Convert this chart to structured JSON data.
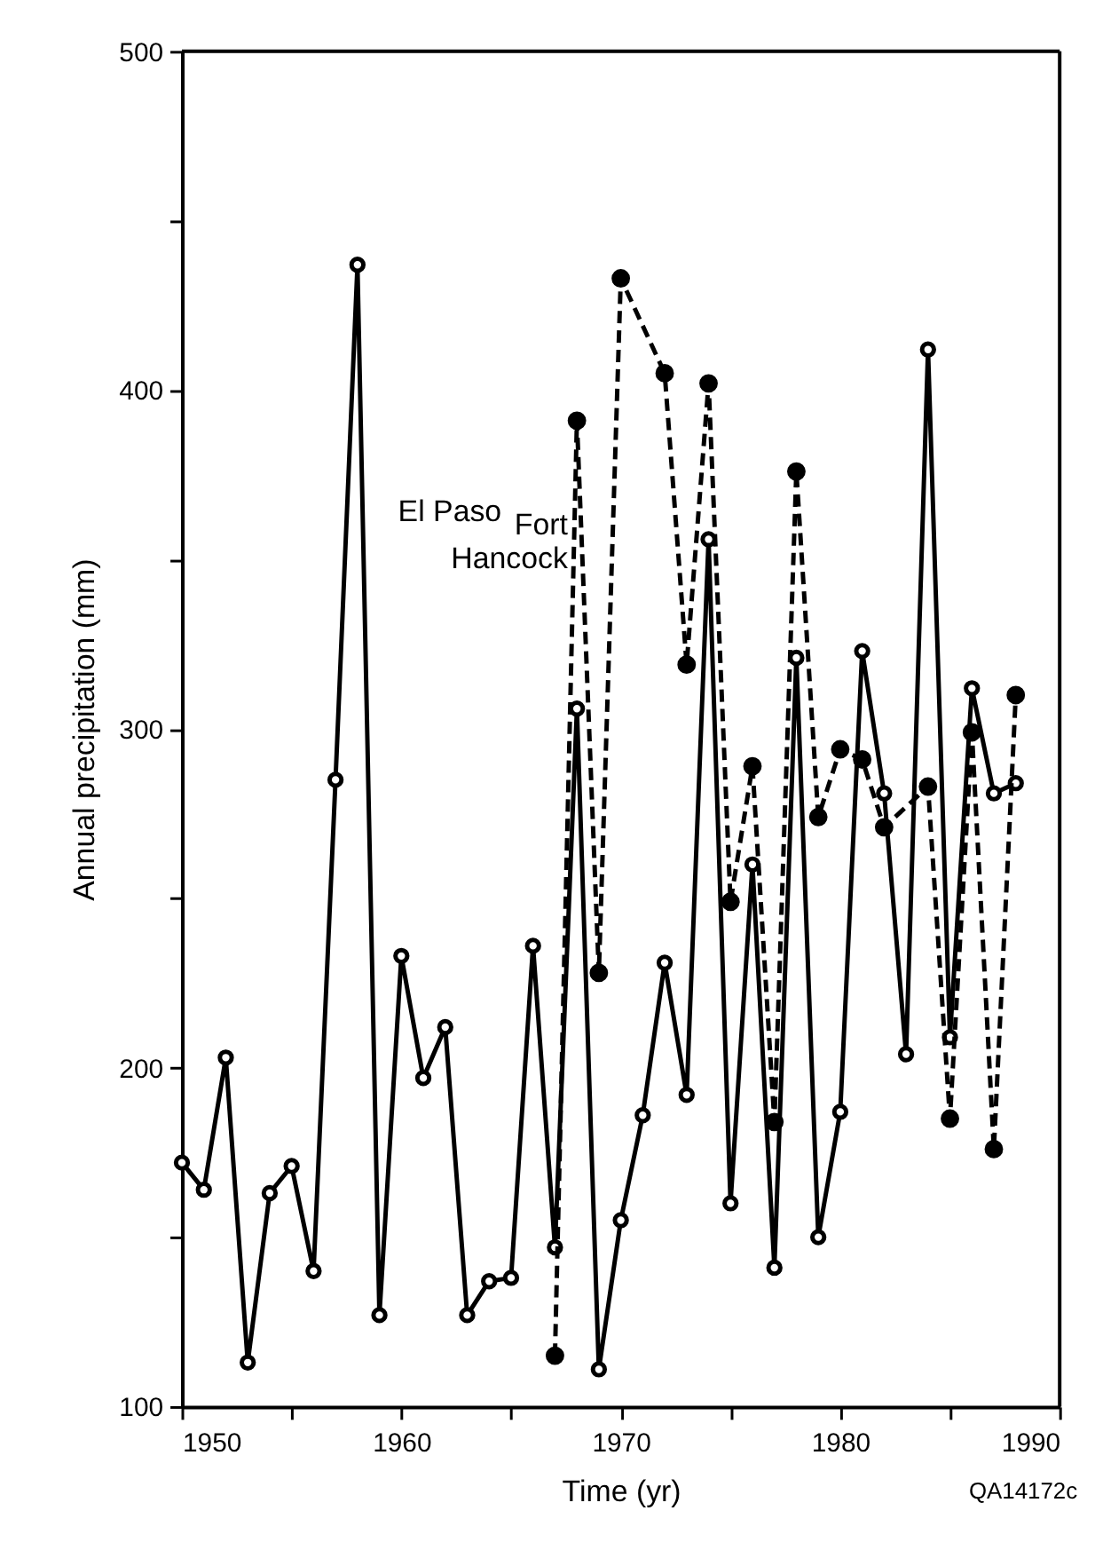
{
  "chart_data": {
    "type": "line",
    "xlabel": "Time (yr)",
    "ylabel": "Annual precipitation (mm)",
    "xlim": [
      1950,
      1990
    ],
    "ylim": [
      100,
      500
    ],
    "xticks": [
      1950,
      {
        "value": 1955,
        "label": null
      },
      1960,
      {
        "value": 1965,
        "label": null
      },
      1970,
      {
        "value": 1975,
        "label": null
      },
      1980,
      {
        "value": 1985,
        "label": null
      },
      1990
    ],
    "yticks": [
      100,
      {
        "value": 150,
        "label": null
      },
      200,
      {
        "value": 250,
        "label": null
      },
      300,
      {
        "value": 350,
        "label": null
      },
      400,
      {
        "value": 450,
        "label": null
      },
      500
    ],
    "grid": false,
    "marker": "circle",
    "annotations": [
      "QA14172c"
    ],
    "series": [
      {
        "name": "El Paso",
        "color": "#000000",
        "line_style": "solid",
        "x": [
          1950,
          1951,
          1952,
          1953,
          1954,
          1955,
          1956,
          1957,
          1958,
          1959,
          1960,
          1961,
          1962,
          1963,
          1964,
          1965,
          1966,
          1967,
          1968,
          1969,
          1970,
          1971,
          1972,
          1973,
          1974,
          1975,
          1976,
          1977,
          1978,
          1979,
          1980,
          1981,
          1982,
          1983,
          1984,
          1985,
          1986,
          1987,
          1988
        ],
        "values": [
          172,
          164,
          203,
          113,
          163,
          171,
          140,
          285,
          437,
          127,
          233,
          197,
          212,
          127,
          137,
          138,
          236,
          147,
          306,
          111,
          155,
          186,
          231,
          192,
          356,
          160,
          260,
          141,
          321,
          150,
          187,
          323,
          281,
          204,
          412,
          209,
          312,
          281,
          284
        ]
      },
      {
        "name": "Fort Hancock",
        "color": "#000000",
        "line_style": "dashed",
        "x": [
          1967,
          1968,
          1969,
          1970,
          1972,
          1973,
          1974,
          1975,
          1976,
          1977,
          1978,
          1979,
          1980,
          1981,
          1982,
          1984,
          1985,
          1986,
          1987,
          1988
        ],
        "values": [
          115,
          391,
          228,
          433,
          405,
          319,
          402,
          249,
          289,
          184,
          376,
          274,
          294,
          291,
          271,
          283,
          185,
          299,
          176,
          310
        ]
      }
    ]
  }
}
